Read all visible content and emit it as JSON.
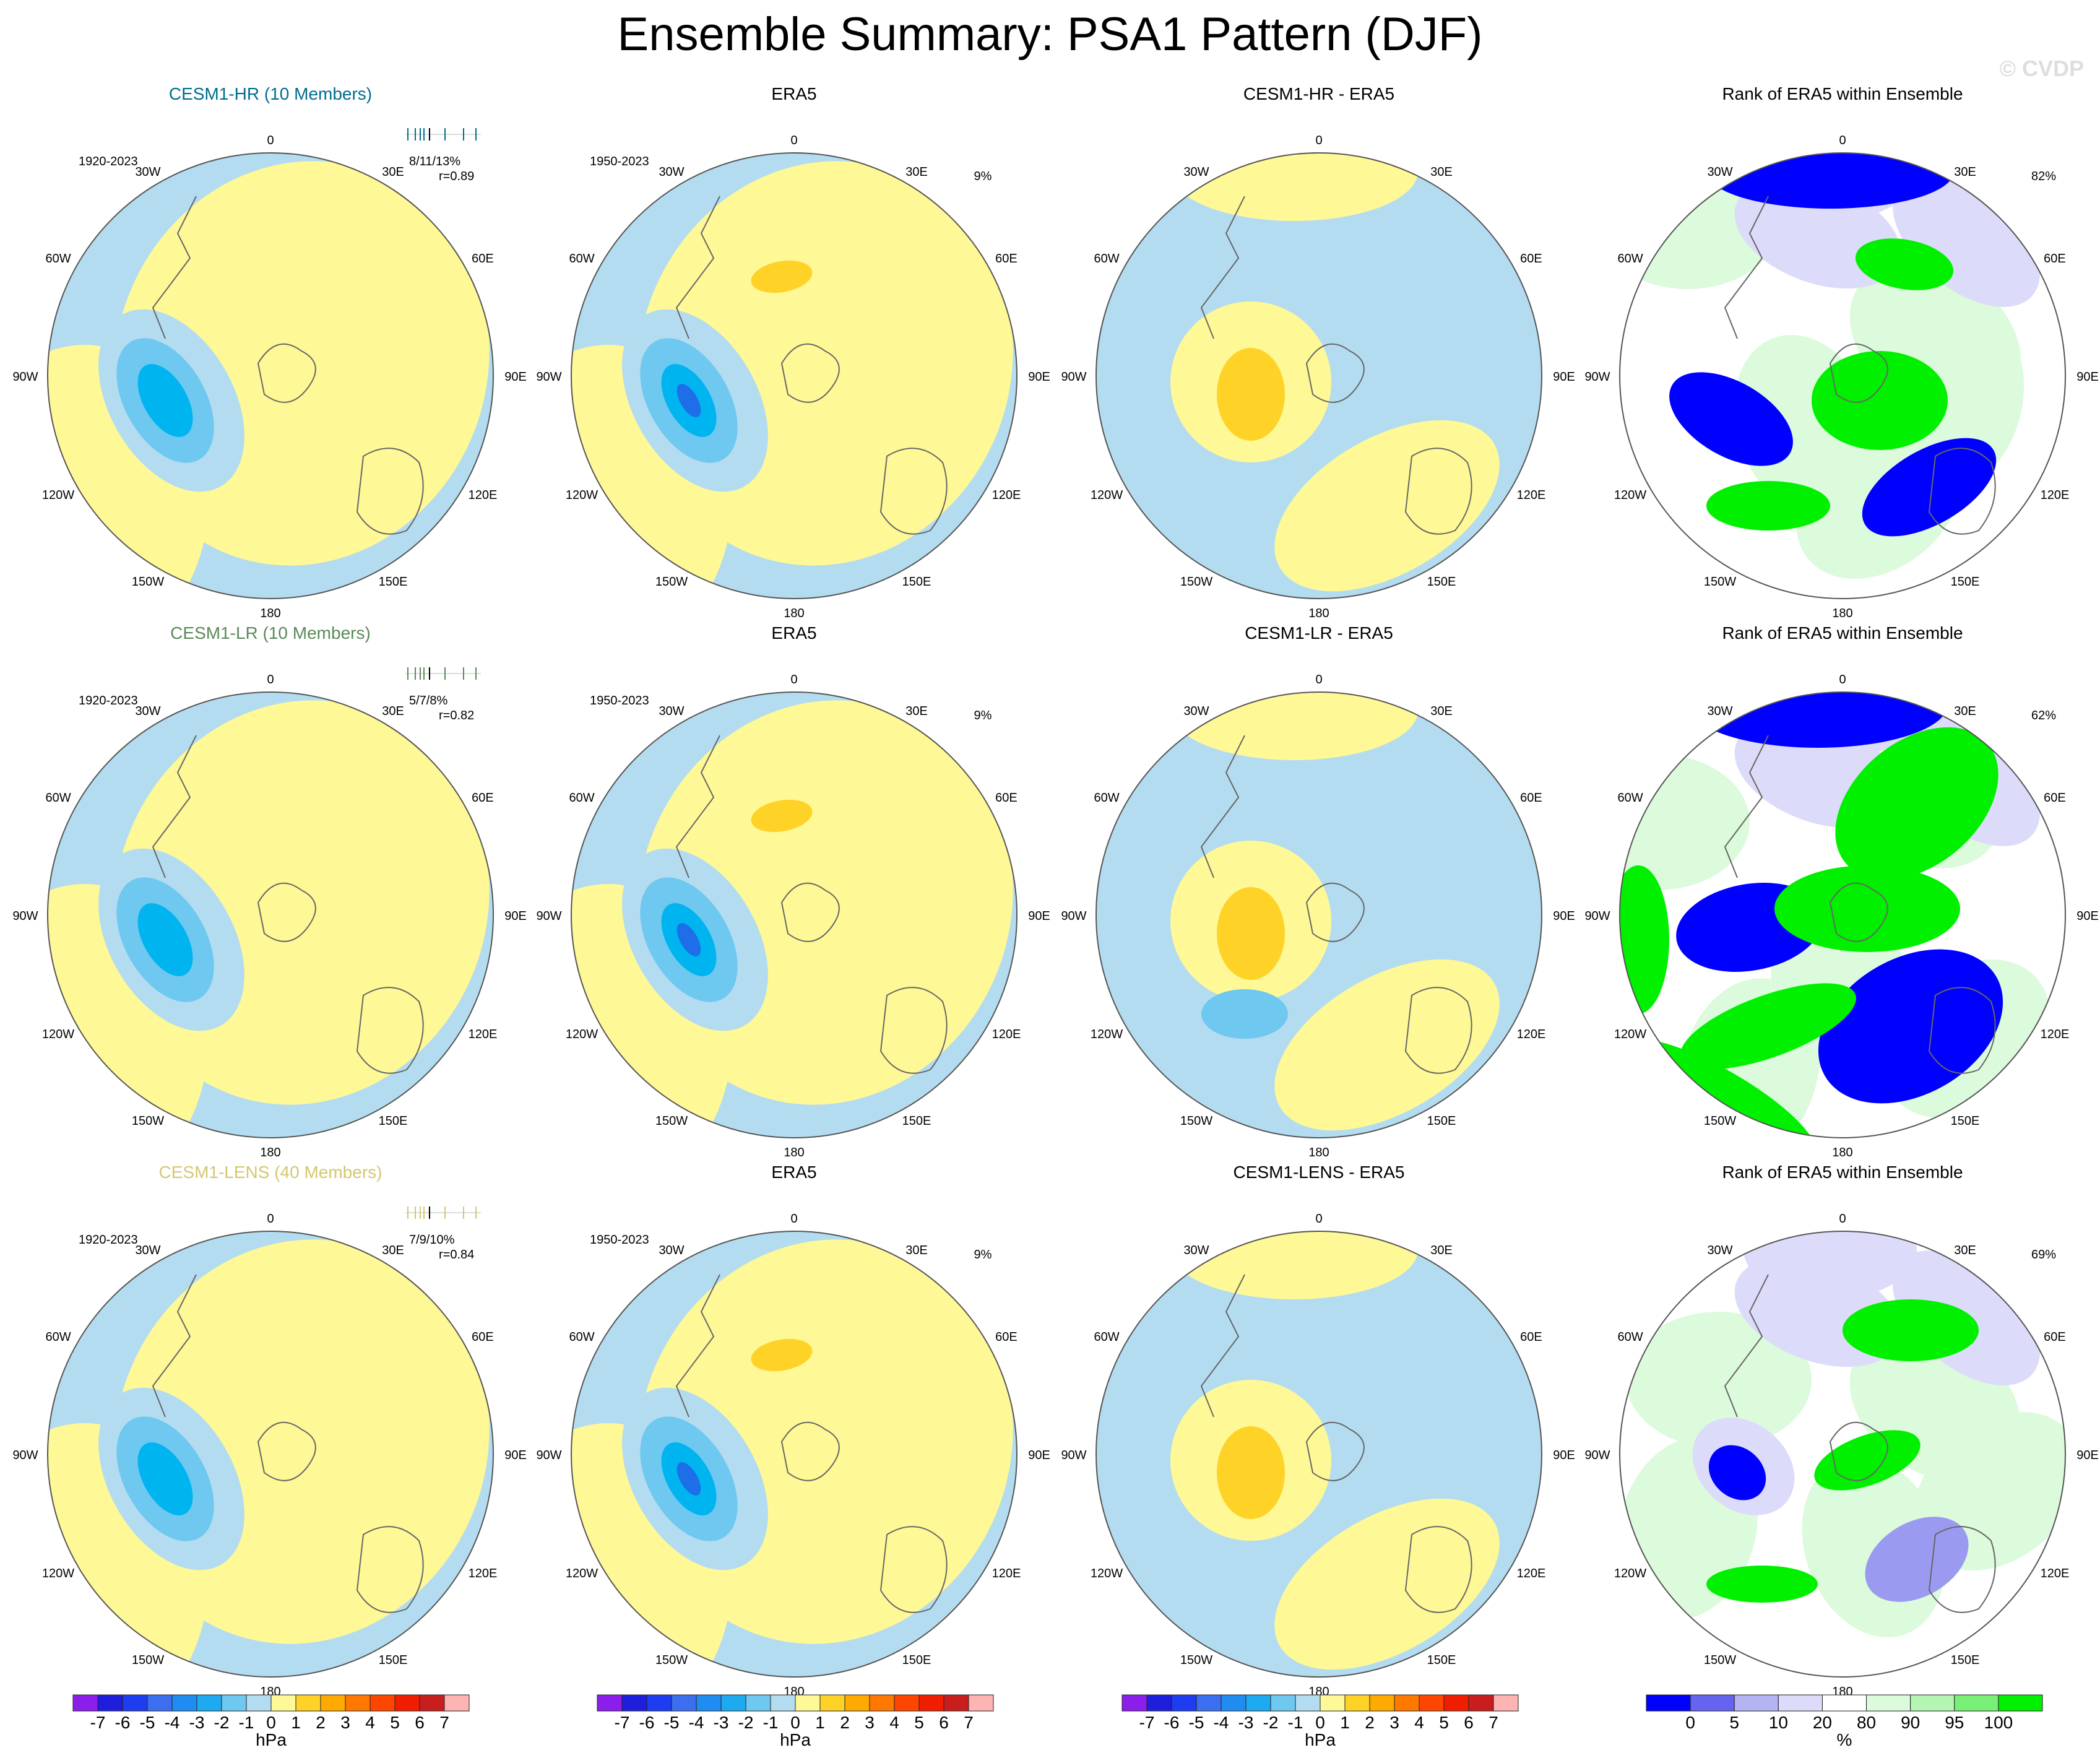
{
  "title": "Ensemble Summary: PSA1 Pattern (DJF)",
  "watermark": "© CVDP",
  "colors": {
    "ocean_blue": "#b4dcf0",
    "pale_yellow": "#fff896",
    "mid_blue": "#6ec8f0",
    "deep_cyan": "#00b4f0",
    "dark_blue_core": "#1e6ee8",
    "orange_yellow": "#ffd228",
    "rank_dark_blue": "#0000ff",
    "rank_light_blue": "#dcdcfa",
    "rank_bright_green": "#00f000",
    "rank_pale_green": "#dcfadc",
    "title_hr": "#006d8f",
    "title_lr": "#5a8a5a",
    "title_lens": "#d4c86e"
  },
  "longitude_labels": [
    "0",
    "30E",
    "60E",
    "90E",
    "120E",
    "150E",
    "180",
    "150W",
    "120W",
    "90W",
    "60W",
    "30W"
  ],
  "rows": [
    {
      "model_title": "CESM1-HR (10 Members)",
      "model_color": "#006d8f",
      "model_period": "1920-2023",
      "ensemble_stats": "8/11/13%",
      "pattern_corr": "r=0.89",
      "diff_title": "CESM1-HR - ERA5",
      "obs_title": "ERA5",
      "obs_period": "1950-2023",
      "obs_pct": "9%",
      "rank_title": "Rank of ERA5 within Ensemble",
      "rank_pct": "82%"
    },
    {
      "model_title": "CESM1-LR (10 Members)",
      "model_color": "#5a8a5a",
      "model_period": "1920-2023",
      "ensemble_stats": "5/7/8%",
      "pattern_corr": "r=0.82",
      "diff_title": "CESM1-LR - ERA5",
      "obs_title": "ERA5",
      "obs_period": "1950-2023",
      "obs_pct": "9%",
      "rank_title": "Rank of ERA5 within Ensemble",
      "rank_pct": "62%"
    },
    {
      "model_title": "CESM1-LENS (40 Members)",
      "model_color": "#d4c86e",
      "model_period": "1920-2023",
      "ensemble_stats": "7/9/10%",
      "pattern_corr": "r=0.84",
      "diff_title": "CESM1-LENS - ERA5",
      "obs_title": "ERA5",
      "obs_period": "1950-2023",
      "obs_pct": "9%",
      "rank_title": "Rank of ERA5 within Ensemble",
      "rank_pct": "69%"
    }
  ],
  "colorbar_hpa": {
    "unit": "hPa",
    "tick_labels": [
      "-7",
      "-6",
      "-5",
      "-4",
      "-3",
      "-2",
      "-1",
      "0",
      "1",
      "2",
      "3",
      "4",
      "5",
      "6",
      "7"
    ],
    "colors": [
      "#8c1eeb",
      "#1e1edc",
      "#1e3cf0",
      "#3c6ef0",
      "#1e8cf0",
      "#1eaaf0",
      "#6ec8f0",
      "#b4dcf0",
      "#fff896",
      "#ffd228",
      "#ffaa00",
      "#ff7800",
      "#ff4600",
      "#f01e00",
      "#c81e1e",
      "#ffb4b4"
    ]
  },
  "colorbar_rank": {
    "unit": "%",
    "tick_labels": [
      "0",
      "5",
      "10",
      "20",
      "80",
      "90",
      "95",
      "100"
    ],
    "colors": [
      "#0000ff",
      "#6464f0",
      "#b4b4f5",
      "#dcdcfa",
      "#ffffff",
      "#dcfadc",
      "#b4f5b4",
      "#78f078",
      "#00f000"
    ]
  }
}
